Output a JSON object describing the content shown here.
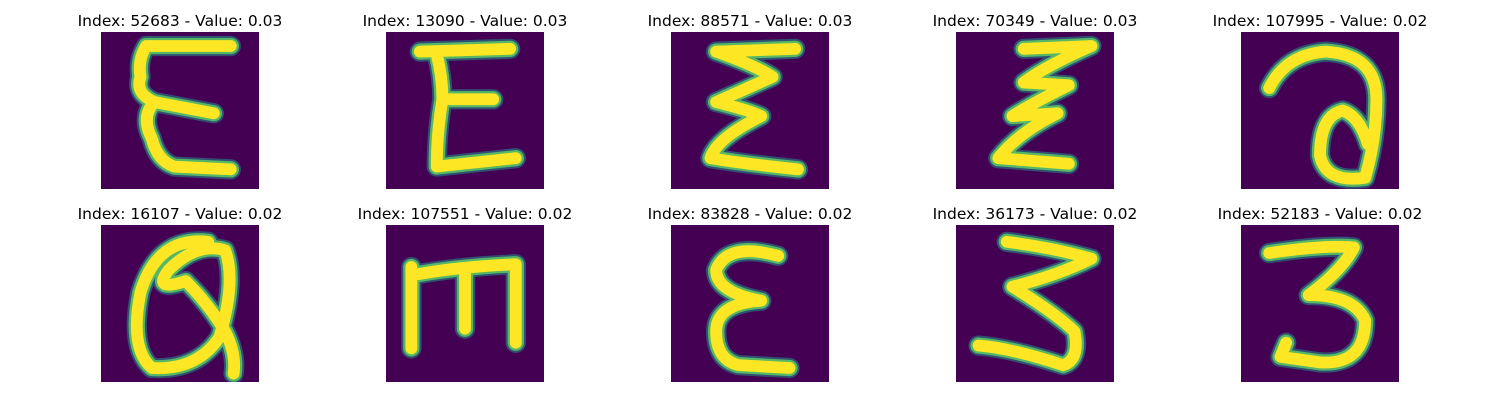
{
  "colors": {
    "background": "#440154",
    "stroke_outer": "#21918c",
    "stroke_mid": "#5ec962",
    "stroke_core": "#fde725"
  },
  "panels": [
    {
      "title": "Index: 52683 - Value: 0.03"
    },
    {
      "title": "Index: 13090 - Value: 0.03"
    },
    {
      "title": "Index: 88571 - Value: 0.03"
    },
    {
      "title": "Index: 70349 - Value: 0.03"
    },
    {
      "title": "Index: 107995 - Value: 0.02"
    },
    {
      "title": "Index: 16107 - Value: 0.02"
    },
    {
      "title": "Index: 107551 - Value: 0.02"
    },
    {
      "title": "Index: 83828 - Value: 0.02"
    },
    {
      "title": "Index: 36173 - Value: 0.02"
    },
    {
      "title": "Index: 52183 - Value: 0.02"
    }
  ]
}
